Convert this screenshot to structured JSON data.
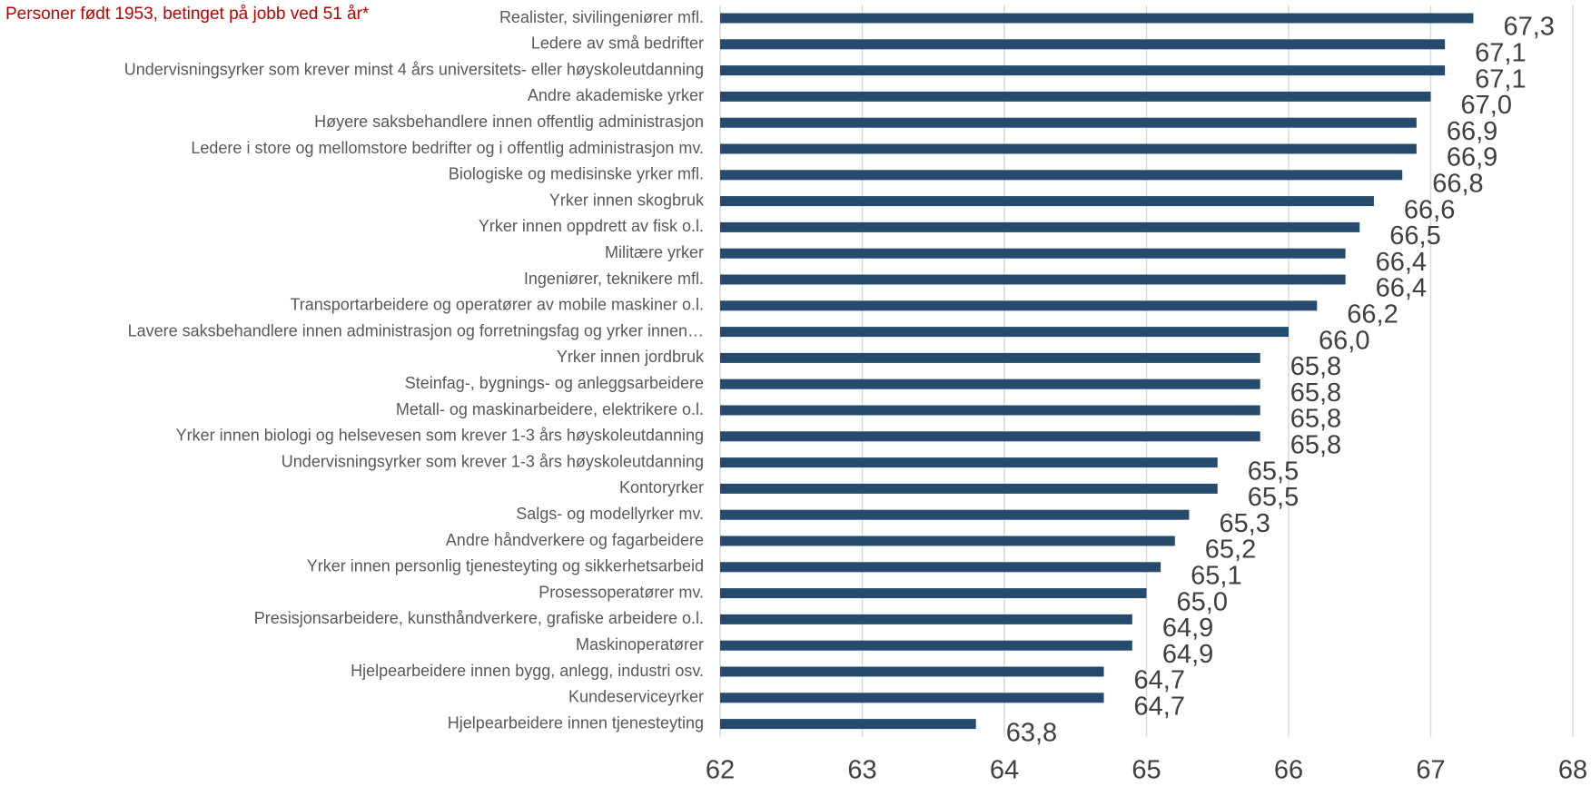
{
  "chart_data": {
    "type": "bar",
    "orientation": "horizontal",
    "subtitle": "Personer født 1953, betinget på jobb ved 51 år*",
    "categories": [
      "Realister, sivilingeniører mfl.",
      "Ledere av små bedrifter",
      "Undervisningsyrker som krever minst 4 års universitets- eller høyskoleutdanning",
      "Andre akademiske yrker",
      "Høyere saksbehandlere innen offentlig administrasjon",
      "Ledere i store og mellomstore bedrifter og i offentlig administrasjon mv.",
      "Biologiske og medisinske yrker mfl.",
      "Yrker innen skogbruk",
      "Yrker innen oppdrett av fisk o.l.",
      "Militære yrker",
      "Ingeniører, teknikere mfl.",
      "Transportarbeidere og operatører av mobile maskiner o.l.",
      "Lavere saksbehandlere innen administrasjon og forretningsfag og yrker innen…",
      "Yrker innen jordbruk",
      "Steinfag-, bygnings- og anleggsarbeidere",
      "Metall- og maskinarbeidere, elektrikere o.l.",
      "Yrker innen biologi og helsevesen som krever 1-3 års høyskoleutdanning",
      "Undervisningsyrker som krever 1-3 års høyskoleutdanning",
      "Kontoryrker",
      "Salgs- og modellyrker mv.",
      "Andre håndverkere og fagarbeidere",
      "Yrker innen personlig tjenesteyting og sikkerhetsarbeid",
      "Prosessoperatører mv.",
      "Presisjonsarbeidere, kunsthåndverkere, grafiske arbeidere o.l.",
      "Maskinoperatører",
      "Hjelpearbeidere innen bygg, anlegg, industri osv.",
      "Kundeserviceyrker",
      "Hjelpearbeidere innen tjenesteyting"
    ],
    "values": [
      67.3,
      67.1,
      67.1,
      67.0,
      66.9,
      66.9,
      66.8,
      66.6,
      66.5,
      66.4,
      66.4,
      66.2,
      66.0,
      65.8,
      65.8,
      65.8,
      65.8,
      65.5,
      65.5,
      65.3,
      65.2,
      65.1,
      65.0,
      64.9,
      64.9,
      64.7,
      64.7,
      63.8
    ],
    "value_labels": [
      "67,3",
      "67,1",
      "67,1",
      "67,0",
      "66,9",
      "66,9",
      "66,8",
      "66,6",
      "66,5",
      "66,4",
      "66,4",
      "66,2",
      "66,0",
      "65,8",
      "65,8",
      "65,8",
      "65,8",
      "65,5",
      "65,5",
      "65,3",
      "65,2",
      "65,1",
      "65,0",
      "64,9",
      "64,9",
      "64,7",
      "64,7",
      "63,8"
    ],
    "color": "#264a6b",
    "xlim": [
      62,
      68
    ],
    "xticks": [
      62,
      63,
      64,
      65,
      66,
      67,
      68
    ],
    "grid": true
  }
}
